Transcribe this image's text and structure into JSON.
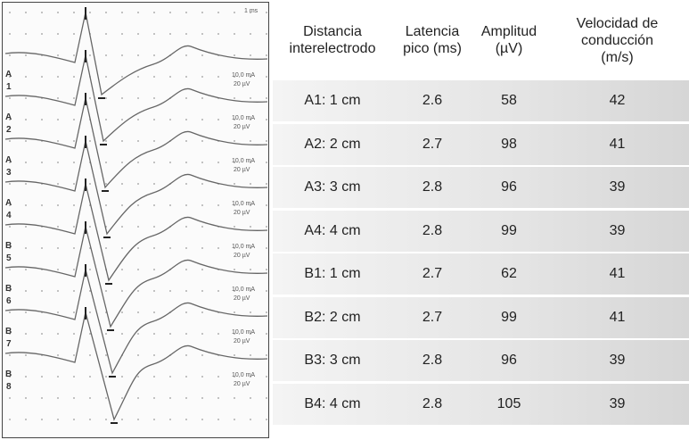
{
  "figure": {
    "scale_label": "1 ms",
    "traces": [
      {
        "group": "A",
        "num": "1",
        "gain": "10,0 mA",
        "sens": "20 µV"
      },
      {
        "group": "A",
        "num": "2",
        "gain": "10,0 mA",
        "sens": "20 µV"
      },
      {
        "group": "A",
        "num": "3",
        "gain": "10,0 mA",
        "sens": "20 µV"
      },
      {
        "group": "A",
        "num": "4",
        "gain": "10,0 mA",
        "sens": "20 µV"
      },
      {
        "group": "B",
        "num": "5",
        "gain": "10,0 mA",
        "sens": "20 µV"
      },
      {
        "group": "B",
        "num": "6",
        "gain": "10,0 mA",
        "sens": "20 µV"
      },
      {
        "group": "B",
        "num": "7",
        "gain": "10,0 mA",
        "sens": "20 µV"
      },
      {
        "group": "B",
        "num": "8",
        "gain": "10,0 mA",
        "sens": "20 µV"
      }
    ]
  },
  "table": {
    "header": [
      "Distancia\ninterelectrodo",
      "Latencia\npico (ms)",
      "Amplitud\n(µV)",
      "Velocidad de\nconducción\n(m/s)"
    ],
    "rows": [
      [
        "A1: 1 cm",
        2.6,
        58,
        42
      ],
      [
        "A2: 2 cm",
        2.7,
        98,
        41
      ],
      [
        "A3: 3 cm",
        2.8,
        96,
        39
      ],
      [
        "A4: 4 cm",
        2.8,
        99,
        39
      ],
      [
        "B1: 1 cm",
        2.7,
        62,
        41
      ],
      [
        "B2: 2 cm",
        2.7,
        99,
        41
      ],
      [
        "B3: 3 cm",
        2.8,
        96,
        39
      ],
      [
        "B4: 4 cm",
        2.8,
        105,
        39
      ]
    ]
  }
}
